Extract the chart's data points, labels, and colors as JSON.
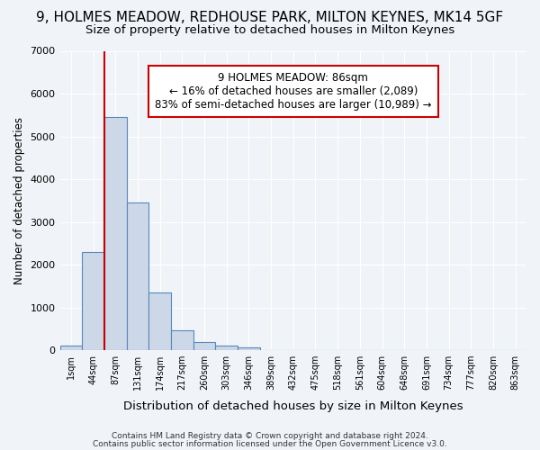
{
  "title": "9, HOLMES MEADOW, REDHOUSE PARK, MILTON KEYNES, MK14 5GF",
  "subtitle": "Size of property relative to detached houses in Milton Keynes",
  "xlabel": "Distribution of detached houses by size in Milton Keynes",
  "ylabel": "Number of detached properties",
  "bin_labels": [
    "1sqm",
    "44sqm",
    "87sqm",
    "131sqm",
    "174sqm",
    "217sqm",
    "260sqm",
    "303sqm",
    "346sqm",
    "389sqm",
    "432sqm",
    "475sqm",
    "518sqm",
    "561sqm",
    "604sqm",
    "648sqm",
    "691sqm",
    "734sqm",
    "777sqm",
    "820sqm",
    "863sqm"
  ],
  "bar_heights": [
    100,
    2300,
    5450,
    3450,
    1350,
    460,
    190,
    100,
    60,
    0,
    0,
    0,
    0,
    0,
    0,
    0,
    0,
    0,
    0,
    0,
    0
  ],
  "bar_color": "#ccd8e8",
  "bar_edge_color": "#5588bb",
  "bg_color": "#f0f4f8",
  "grid_color": "#ffffff",
  "red_line_idx": 2,
  "red_line_color": "#cc0000",
  "annotation_text": "9 HOLMES MEADOW: 86sqm\n← 16% of detached houses are smaller (2,089)\n83% of semi-detached houses are larger (10,989) →",
  "annotation_box_color": "#cc0000",
  "ylim": [
    0,
    7000
  ],
  "yticks": [
    0,
    1000,
    2000,
    3000,
    4000,
    5000,
    6000,
    7000
  ],
  "footer1": "Contains HM Land Registry data © Crown copyright and database right 2024.",
  "footer2": "Contains public sector information licensed under the Open Government Licence v3.0.",
  "title_fontsize": 11,
  "subtitle_fontsize": 9.5,
  "xlabel_fontsize": 9.5,
  "ylabel_fontsize": 8.5
}
